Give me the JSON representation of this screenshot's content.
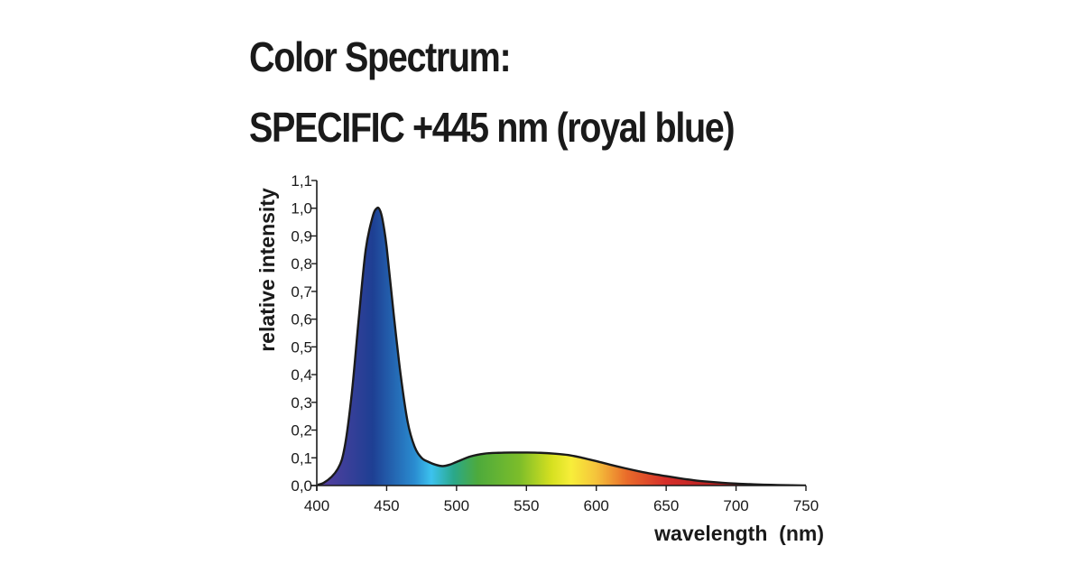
{
  "title": {
    "line1": "Color Spectrum:",
    "line2": "SPECIFIC +445 nm (royal blue)"
  },
  "chart_data": {
    "type": "area",
    "title": "Color Spectrum: SPECIFIC +445 nm (royal blue)",
    "xlabel": "wavelength  (nm)",
    "ylabel": "relative intensity",
    "xlim": [
      400,
      750
    ],
    "ylim": [
      0,
      1.1
    ],
    "x_ticks": [
      400,
      450,
      500,
      550,
      600,
      650,
      700,
      750
    ],
    "x_tick_labels": [
      "400",
      "450",
      "500",
      "550",
      "600",
      "650",
      "700",
      "750"
    ],
    "y_ticks": [
      0,
      0.1,
      0.2,
      0.3,
      0.4,
      0.5,
      0.6,
      0.7,
      0.8,
      0.9,
      1.0,
      1.1
    ],
    "y_tick_labels": [
      "0,0",
      "0,1",
      "0,2",
      "0,3",
      "0,4",
      "0,5",
      "0,6",
      "0,7",
      "0,8",
      "0,9",
      "1,0",
      "1,1"
    ],
    "grid": false,
    "fill": "visible spectrum gradient",
    "gradient_colors": [
      {
        "nm": 400,
        "color": "#5a3fa0"
      },
      {
        "nm": 440,
        "color": "#1e3f93"
      },
      {
        "nm": 470,
        "color": "#2a8cd0"
      },
      {
        "nm": 482,
        "color": "#3cc2ee"
      },
      {
        "nm": 498,
        "color": "#2aa88a"
      },
      {
        "nm": 515,
        "color": "#4daa3c"
      },
      {
        "nm": 545,
        "color": "#7cbd2a"
      },
      {
        "nm": 568,
        "color": "#d6e020"
      },
      {
        "nm": 582,
        "color": "#f7ee3a"
      },
      {
        "nm": 600,
        "color": "#f5c33b"
      },
      {
        "nm": 622,
        "color": "#e96b2a"
      },
      {
        "nm": 650,
        "color": "#d62e2a"
      },
      {
        "nm": 700,
        "color": "#a81c1e"
      }
    ],
    "series": [
      {
        "x": [
          395,
          405,
          415,
          420,
          425,
          430,
          435,
          440,
          443,
          445,
          447,
          450,
          455,
          460,
          465,
          470,
          475,
          480,
          485,
          490,
          495,
          500,
          510,
          520,
          530,
          540,
          550,
          560,
          570,
          580,
          590,
          600,
          610,
          620,
          630,
          640,
          650,
          660,
          670,
          680,
          690,
          700,
          710,
          720,
          730,
          740,
          750
        ],
        "y": [
          0.0,
          0.01,
          0.06,
          0.14,
          0.33,
          0.6,
          0.85,
          0.97,
          1.0,
          0.995,
          0.96,
          0.86,
          0.62,
          0.4,
          0.23,
          0.14,
          0.1,
          0.085,
          0.075,
          0.07,
          0.075,
          0.085,
          0.105,
          0.115,
          0.118,
          0.119,
          0.119,
          0.118,
          0.115,
          0.11,
          0.1,
          0.088,
          0.075,
          0.063,
          0.052,
          0.042,
          0.034,
          0.026,
          0.019,
          0.014,
          0.01,
          0.007,
          0.005,
          0.003,
          0.002,
          0.001,
          0.0
        ]
      }
    ]
  }
}
